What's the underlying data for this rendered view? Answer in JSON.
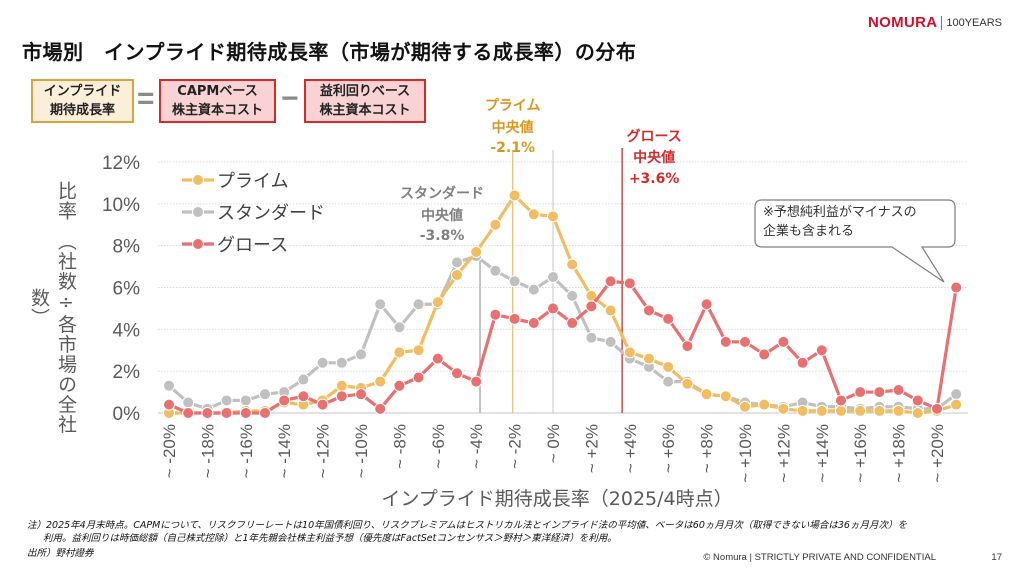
{
  "header": {
    "title": "市場別　インプライド期待成長率（市場が期待する成長率）の分布",
    "logo_brand": "NOMURA",
    "logo_years": "100YEARS"
  },
  "formula": {
    "term1": [
      "インプライド",
      "期待成長率"
    ],
    "equals": "=",
    "term2": [
      "CAPMベース",
      "株主資本コスト"
    ],
    "minus": "−",
    "term3": [
      "益利回りベース",
      "株主資本コスト"
    ]
  },
  "colors": {
    "prime": "#f0bd62",
    "standard": "#c0c0c0",
    "growth": "#e87070",
    "prime_text": "#d9961e",
    "standard_text": "#7f7f7f",
    "growth_text": "#d42a2a"
  },
  "footnotes": {
    "note1": "注）2025年4月末時点。CAPMについて、リスクフリーレートは10年国債利回り、リスクプレミアムはヒストリカル法とインプライド法の平均値、ベータは60ヵ月月次（取得できない場合は36ヵ月月次）を",
    "note2": "利用。益利回りは時価総額（自己株式控除）と1年先親会社株主利益予想（優先度はFactSetコンセンサス＞野村＞東洋経済）を利用。",
    "source": "出所）野村證券",
    "copyright": "© Nomura | STRICTLY PRIVATE AND CONFIDENTIAL",
    "page": "17"
  },
  "chart_data": {
    "type": "line",
    "title": "",
    "xlabel": "インプライド期待成長率（2025/4時点）",
    "ylabel": "比率　（社数÷各市場の全社数）",
    "ylim": [
      0,
      12
    ],
    "yticks": [
      "0%",
      "2%",
      "4%",
      "6%",
      "8%",
      "10%",
      "12%"
    ],
    "ytick_values": [
      0,
      2,
      4,
      6,
      8,
      10,
      12
    ],
    "grid": true,
    "legend_position": "top-left",
    "x": [
      -20,
      -19,
      -18,
      -17,
      -16,
      -15,
      -14,
      -13,
      -12,
      -11,
      -10,
      -9,
      -8,
      -7,
      -6,
      -5,
      -4,
      -3,
      -2,
      -1,
      0,
      1,
      2,
      3,
      4,
      5,
      6,
      7,
      8,
      9,
      10,
      11,
      12,
      13,
      14,
      15,
      16,
      17,
      18,
      19,
      20,
      21
    ],
    "xtick_labels": [
      {
        "x": -20,
        "label": "~ -20%"
      },
      {
        "x": -18,
        "label": "~ -18%"
      },
      {
        "x": -16,
        "label": "~ -16%"
      },
      {
        "x": -14,
        "label": "~ -14%"
      },
      {
        "x": -12,
        "label": "~ -12%"
      },
      {
        "x": -10,
        "label": "~ -10%"
      },
      {
        "x": -8,
        "label": "~ -8%"
      },
      {
        "x": -6,
        "label": "~ -6%"
      },
      {
        "x": -4,
        "label": "~ -4%"
      },
      {
        "x": -2,
        "label": "~ -2%"
      },
      {
        "x": 0,
        "label": "~ 0%"
      },
      {
        "x": 2,
        "label": "~ +2%"
      },
      {
        "x": 4,
        "label": "~ +4%"
      },
      {
        "x": 6,
        "label": "~ +6%"
      },
      {
        "x": 8,
        "label": "~ +8%"
      },
      {
        "x": 10,
        "label": "~ +10%"
      },
      {
        "x": 12,
        "label": "~ +12%"
      },
      {
        "x": 14,
        "label": "~ +14%"
      },
      {
        "x": 16,
        "label": "~ +16%"
      },
      {
        "x": 18,
        "label": "~ +18%"
      },
      {
        "x": 20,
        "label": "~ +20%"
      }
    ],
    "series": [
      {
        "key": "prime",
        "name": "プライム",
        "values": [
          0.0,
          0.0,
          0.0,
          0.0,
          0.1,
          0.1,
          0.5,
          0.4,
          0.6,
          1.3,
          1.2,
          1.5,
          2.9,
          3.0,
          5.3,
          6.6,
          7.7,
          9.0,
          10.4,
          9.5,
          9.4,
          7.1,
          5.6,
          4.9,
          2.9,
          2.6,
          2.2,
          1.4,
          0.9,
          0.8,
          0.3,
          0.4,
          0.2,
          0.1,
          0.1,
          0.1,
          0.1,
          0.1,
          0.1,
          0.0,
          0.1,
          0.4
        ]
      },
      {
        "key": "standard",
        "name": "スタンダード",
        "values": [
          1.3,
          0.5,
          0.2,
          0.6,
          0.6,
          0.9,
          1.0,
          1.6,
          2.4,
          2.4,
          2.8,
          5.2,
          4.1,
          5.2,
          5.2,
          7.2,
          7.5,
          6.8,
          6.3,
          5.9,
          6.5,
          5.6,
          3.6,
          3.4,
          2.6,
          2.2,
          1.5,
          1.5,
          0.9,
          0.8,
          0.5,
          0.4,
          0.3,
          0.5,
          0.3,
          0.3,
          0.2,
          0.3,
          0.3,
          0.2,
          0.2,
          0.9
        ]
      },
      {
        "key": "growth",
        "name": "グロース",
        "values": [
          0.4,
          0.0,
          0.0,
          0.0,
          0.0,
          0.0,
          0.6,
          0.8,
          0.4,
          0.8,
          0.9,
          0.2,
          1.3,
          1.7,
          2.6,
          1.9,
          1.5,
          4.7,
          4.5,
          4.3,
          5.0,
          4.3,
          5.1,
          6.3,
          6.2,
          4.9,
          4.5,
          3.2,
          5.2,
          3.4,
          3.4,
          2.8,
          3.4,
          2.4,
          3.0,
          0.6,
          1.0,
          1.0,
          1.1,
          0.6,
          0.2,
          6.0
        ]
      }
    ],
    "median_lines": [
      {
        "key": "standard",
        "x": -3.8,
        "label": [
          "スタンダード",
          "中央値",
          "-3.8%"
        ]
      },
      {
        "key": "prime",
        "x": -2.1,
        "label": [
          "プライム",
          "中央値",
          "-2.1%"
        ]
      },
      {
        "key": "growth",
        "x": 3.6,
        "label": [
          "グロース",
          "中央値",
          "+3.6%"
        ]
      }
    ],
    "zero_reference_x": 0,
    "annotation": "※予想純利益がマイナスの企業も含まれる",
    "annotation_lines": [
      "※予想純利益がマイナスの",
      "企業も含まれる"
    ]
  }
}
